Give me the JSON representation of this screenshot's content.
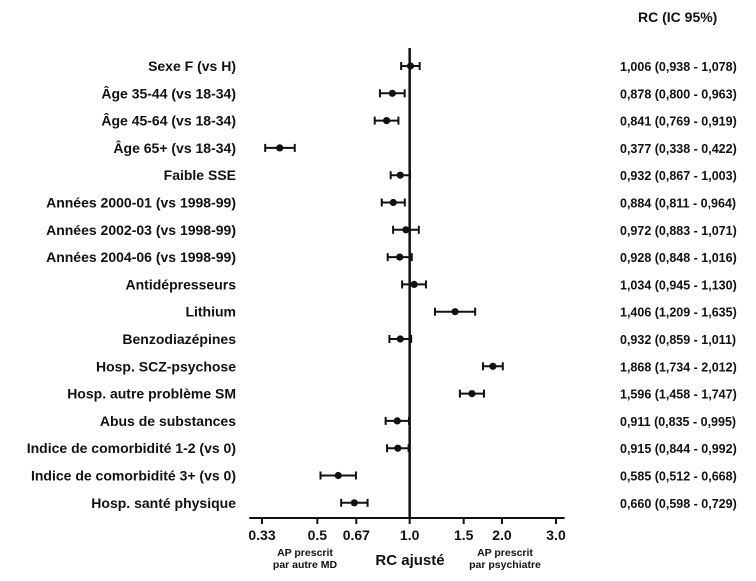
{
  "chart_data": {
    "type": "forest",
    "header": "RC (IC 95%)",
    "xlabel": "RC ajusté",
    "x_scale": "log",
    "xlim": [
      0.3,
      3.2
    ],
    "x_ticks": [
      0.33,
      0.5,
      0.67,
      1.0,
      1.5,
      2.0,
      3.0
    ],
    "x_tick_labels": [
      "0.33",
      "0.5",
      "0.67",
      "1.0",
      "1.5",
      "2.0",
      "3.0"
    ],
    "reference_line": 1.0,
    "left_note": [
      "AP prescrit",
      "par autre MD"
    ],
    "right_note": [
      "AP prescrit",
      "par psychiatre"
    ],
    "rows": [
      {
        "label": "Sexe F (vs H)",
        "est": 1.006,
        "lo": 0.938,
        "hi": 1.078,
        "text": "1,006 (0,938 - 1,078)"
      },
      {
        "label": "Âge 35-44 (vs 18-34)",
        "est": 0.878,
        "lo": 0.8,
        "hi": 0.963,
        "text": "0,878 (0,800 - 0,963)"
      },
      {
        "label": "Âge 45-64 (vs 18-34)",
        "est": 0.841,
        "lo": 0.769,
        "hi": 0.919,
        "text": "0,841 (0,769 - 0,919)"
      },
      {
        "label": "Âge 65+ (vs 18-34)",
        "est": 0.377,
        "lo": 0.338,
        "hi": 0.422,
        "text": "0,377 (0,338 - 0,422)"
      },
      {
        "label": "Faible SSE",
        "est": 0.932,
        "lo": 0.867,
        "hi": 1.003,
        "text": "0,932 (0,867 - 1,003)"
      },
      {
        "label": "Années 2000-01 (vs 1998-99)",
        "est": 0.884,
        "lo": 0.811,
        "hi": 0.964,
        "text": "0,884 (0,811 - 0,964)"
      },
      {
        "label": "Années 2002-03 (vs 1998-99)",
        "est": 0.972,
        "lo": 0.883,
        "hi": 1.071,
        "text": "0,972 (0,883 - 1,071)"
      },
      {
        "label": "Années 2004-06 (vs 1998-99)",
        "est": 0.928,
        "lo": 0.848,
        "hi": 1.016,
        "text": "0,928 (0,848 - 1,016)"
      },
      {
        "label": "Antidépresseurs",
        "est": 1.034,
        "lo": 0.945,
        "hi": 1.13,
        "text": "1,034 (0,945 - 1,130)"
      },
      {
        "label": "Lithium",
        "est": 1.406,
        "lo": 1.209,
        "hi": 1.635,
        "text": "1,406 (1,209 - 1,635)"
      },
      {
        "label": "Benzodiazépines",
        "est": 0.932,
        "lo": 0.859,
        "hi": 1.011,
        "text": "0,932 (0,859 - 1,011)"
      },
      {
        "label": "Hosp. SCZ-psychose",
        "est": 1.868,
        "lo": 1.734,
        "hi": 2.012,
        "text": "1,868 (1,734 - 2,012)"
      },
      {
        "label": "Hosp. autre problème SM",
        "est": 1.596,
        "lo": 1.458,
        "hi": 1.747,
        "text": "1,596 (1,458 - 1,747)"
      },
      {
        "label": "Abus de substances",
        "est": 0.911,
        "lo": 0.835,
        "hi": 0.995,
        "text": "0,911 (0,835 - 0,995)"
      },
      {
        "label": "Indice de comorbidité 1-2 (vs 0)",
        "est": 0.915,
        "lo": 0.844,
        "hi": 0.992,
        "text": "0,915 (0,844 - 0,992)"
      },
      {
        "label": "Indice de comorbidité  3+ (vs 0)",
        "est": 0.585,
        "lo": 0.512,
        "hi": 0.668,
        "text": "0,585 (0,512 - 0,668)"
      },
      {
        "label": "Hosp. santé physique",
        "est": 0.66,
        "lo": 0.598,
        "hi": 0.729,
        "text": "0,660 (0,598 - 0,729)"
      }
    ]
  }
}
